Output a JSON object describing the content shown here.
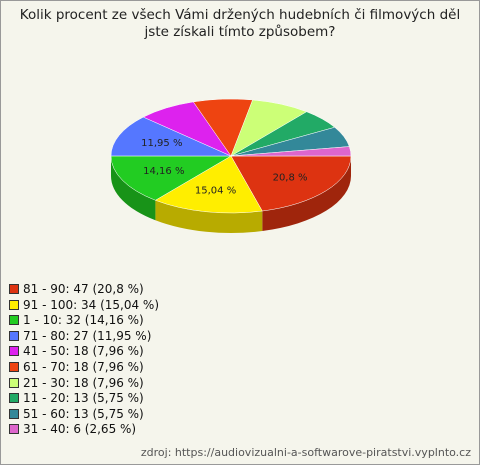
{
  "chart_data": {
    "type": "pie",
    "title": "Kolik procent ze všech Vámi držených hudebních či filmových děl jste získali tímto způsobem?",
    "categories": [
      "81 - 90: 47 (20,8 %)",
      "91 - 100: 34 (15,04 %)",
      "1 - 10: 32 (14,16 %)",
      "71 - 80: 27 (11,95 %)",
      "41 - 50: 18 (7,96 %)",
      "61 - 70: 18 (7,96 %)",
      "21 - 30: 18 (7,96 %)",
      "11 - 20: 13 (5,75 %)",
      "51 - 60: 13 (5,75 %)",
      "31 - 40: 6 (2,65 %)"
    ],
    "values": [
      20.8,
      15.04,
      14.16,
      11.95,
      7.96,
      7.96,
      7.96,
      5.75,
      5.75,
      2.65
    ],
    "value_labels": [
      "20,8 %",
      "15,04 %",
      "14,16 %",
      "11,95 %",
      null,
      null,
      null,
      null,
      null,
      null
    ],
    "colors": [
      "#dd3311",
      "#ffee00",
      "#22cc22",
      "#5577ff",
      "#dd22ee",
      "#ee4411",
      "#ccff77",
      "#22aa66",
      "#338899",
      "#dd66cc"
    ],
    "source": "zdroj: https://audiovizualni-a-softwarove-piratstvi.vyplnto.cz"
  }
}
